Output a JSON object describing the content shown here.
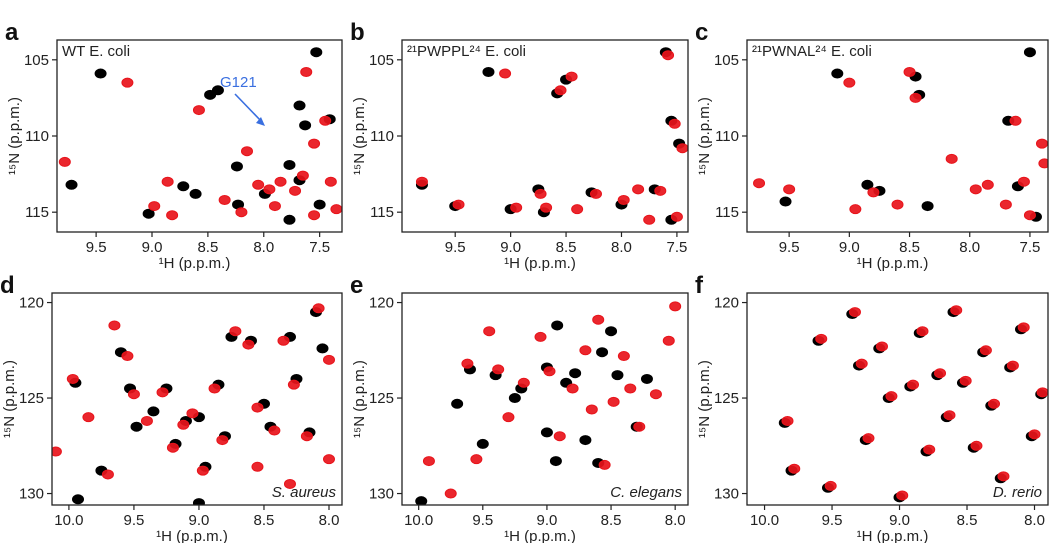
{
  "chart_data": [
    {
      "type": "scatter",
      "panel_label": "a",
      "title": "WT E. coli",
      "title_corner": "top-left",
      "xlabel": "¹H (p.p.m.)",
      "ylabel": "¹⁵N (p.p.m.)",
      "x_inverted": true,
      "y_inverted": true,
      "xlim": [
        9.85,
        7.3
      ],
      "ylim": [
        103.7,
        116.3
      ],
      "xticks": [
        9.5,
        {
          "value": 9,
          "label": "9.0"
        },
        8.5,
        {
          "value": 8,
          "label": "8.0"
        },
        7.5
      ],
      "yticks": [
        105,
        110,
        115
      ],
      "annotation": {
        "text": "G121",
        "color": "#3a6fe0"
      },
      "series": [
        {
          "color": "#000000",
          "x": [
            9.72,
            9.46,
            9.03,
            8.72,
            8.61,
            8.48,
            8.41,
            8.24,
            8.23,
            7.99,
            7.77,
            7.68,
            7.63,
            7.53,
            7.68,
            7.41,
            7.5,
            7.77
          ],
          "values": [
            113.2,
            105.9,
            115.1,
            113.3,
            113.8,
            107.3,
            107.0,
            112.0,
            114.5,
            113.8,
            111.9,
            112.9,
            109.3,
            104.5,
            108.0,
            108.9,
            114.5,
            115.5
          ]
        },
        {
          "color": "#e8141b",
          "x": [
            9.78,
            9.22,
            8.98,
            8.86,
            8.82,
            8.58,
            8.35,
            8.15,
            8.05,
            7.95,
            7.85,
            7.72,
            7.62,
            7.55,
            7.45,
            7.4,
            7.35,
            7.55,
            8.2,
            7.65,
            7.9
          ],
          "values": [
            111.7,
            106.5,
            114.6,
            113.0,
            115.2,
            108.3,
            114.2,
            111.0,
            113.2,
            113.5,
            113.0,
            113.6,
            105.8,
            110.5,
            109.0,
            113.0,
            114.8,
            115.2,
            115.0,
            112.6,
            114.6
          ]
        }
      ]
    },
    {
      "type": "scatter",
      "panel_label": "b",
      "title": "²¹PWPPL²⁴ E. coli",
      "title_corner": "top-left",
      "xlabel": "¹H (p.p.m.)",
      "ylabel": "¹⁵N (p.p.m.)",
      "x_inverted": true,
      "y_inverted": true,
      "xlim": [
        9.98,
        7.4
      ],
      "ylim": [
        103.7,
        116.3
      ],
      "xticks": [
        9.5,
        {
          "value": 9,
          "label": "9.0"
        },
        8.5,
        {
          "value": 8,
          "label": "8.0"
        },
        7.5
      ],
      "yticks": [
        105,
        110,
        115
      ],
      "series": [
        {
          "color": "#000000",
          "x": [
            9.8,
            9.5,
            9.2,
            9.0,
            8.75,
            8.58,
            8.5,
            8.27,
            8.0,
            7.6,
            7.55,
            7.48,
            7.7,
            7.55,
            8.7
          ],
          "values": [
            113.2,
            114.6,
            105.8,
            114.8,
            113.5,
            107.2,
            106.3,
            113.7,
            114.5,
            104.5,
            109.0,
            110.5,
            113.5,
            115.5,
            115.0
          ]
        },
        {
          "color": "#e8141b",
          "x": [
            9.8,
            9.47,
            9.05,
            8.95,
            8.73,
            8.55,
            8.45,
            8.23,
            7.98,
            7.85,
            7.58,
            7.52,
            7.45,
            7.65,
            7.5,
            8.68,
            8.4,
            7.75
          ],
          "values": [
            113.0,
            114.5,
            105.9,
            114.7,
            113.8,
            107.0,
            106.1,
            113.8,
            114.2,
            113.5,
            104.7,
            109.2,
            110.8,
            113.6,
            115.3,
            114.7,
            114.8,
            115.5
          ]
        }
      ]
    },
    {
      "type": "scatter",
      "panel_label": "c",
      "title": "²¹PWNAL²⁴ E. coli",
      "title_corner": "top-left",
      "xlabel": "¹H (p.p.m.)",
      "ylabel": "¹⁵N (p.p.m.)",
      "x_inverted": true,
      "y_inverted": true,
      "xlim": [
        9.85,
        7.35
      ],
      "ylim": [
        103.7,
        116.3
      ],
      "xticks": [
        9.5,
        {
          "value": 9,
          "label": "9.0"
        },
        8.5,
        {
          "value": 8,
          "label": "8.0"
        },
        7.5
      ],
      "yticks": [
        105,
        110,
        115
      ],
      "series": [
        {
          "color": "#000000",
          "x": [
            9.53,
            9.1,
            8.85,
            8.75,
            8.45,
            8.42,
            8.35,
            7.68,
            7.5,
            7.6,
            7.45
          ],
          "values": [
            114.3,
            105.9,
            113.2,
            113.6,
            106.1,
            107.3,
            114.6,
            109.0,
            104.5,
            113.3,
            115.3
          ]
        },
        {
          "color": "#e8141b",
          "x": [
            9.75,
            9.5,
            9.0,
            8.95,
            8.8,
            8.5,
            8.45,
            8.15,
            7.95,
            7.85,
            7.7,
            7.62,
            7.55,
            7.5,
            7.4,
            8.6,
            7.38
          ],
          "values": [
            113.1,
            113.5,
            106.5,
            114.8,
            113.7,
            105.8,
            107.5,
            111.5,
            113.5,
            113.2,
            114.5,
            109.0,
            113.0,
            115.2,
            110.5,
            114.5,
            111.8
          ]
        }
      ]
    },
    {
      "type": "scatter",
      "panel_label": "d",
      "title": "S. aureus",
      "title_corner": "bottom-right",
      "xlabel": "¹H (p.p.m.)",
      "ylabel": "¹⁵N (p.p.m.)",
      "x_inverted": true,
      "y_inverted": true,
      "xlim": [
        10.13,
        7.9
      ],
      "ylim": [
        119.5,
        130.6
      ],
      "xticks": [
        {
          "value": 10,
          "label": "10.0"
        },
        9.5,
        {
          "value": 9,
          "label": "9.0"
        },
        8.5,
        {
          "value": 8,
          "label": "8.0"
        }
      ],
      "yticks": [
        120,
        125,
        130
      ],
      "series": [
        {
          "color": "#000000",
          "x": [
            9.95,
            9.93,
            9.6,
            9.53,
            9.48,
            9.35,
            9.25,
            9.18,
            9.1,
            9.0,
            8.95,
            8.85,
            8.8,
            8.75,
            8.6,
            8.5,
            8.45,
            8.3,
            8.25,
            8.15,
            8.1,
            8.05,
            9.75,
            9.0
          ],
          "values": [
            124.2,
            130.3,
            122.6,
            124.5,
            126.5,
            125.7,
            124.5,
            127.4,
            126.2,
            126.0,
            128.6,
            124.3,
            127.0,
            121.8,
            122.0,
            125.3,
            126.5,
            121.8,
            124.0,
            126.8,
            120.5,
            122.4,
            128.8,
            130.5
          ]
        },
        {
          "color": "#e8141b",
          "x": [
            9.97,
            10.1,
            9.65,
            9.55,
            9.5,
            9.4,
            9.28,
            9.2,
            9.12,
            9.05,
            8.97,
            8.88,
            8.82,
            8.72,
            8.62,
            8.55,
            8.42,
            8.35,
            8.27,
            8.17,
            8.08,
            8.0,
            9.7,
            8.55,
            8.3,
            9.85,
            8.0
          ],
          "values": [
            124.0,
            127.8,
            121.2,
            122.8,
            124.8,
            126.2,
            124.7,
            127.6,
            126.4,
            125.8,
            128.8,
            124.5,
            127.2,
            121.5,
            122.2,
            125.5,
            126.7,
            122.0,
            124.3,
            127.0,
            120.3,
            123.0,
            129.0,
            128.6,
            129.5,
            126.0,
            128.2
          ]
        }
      ]
    },
    {
      "type": "scatter",
      "panel_label": "e",
      "title": "C. elegans",
      "title_corner": "bottom-right",
      "xlabel": "¹H (p.p.m.)",
      "ylabel": "¹⁵N (p.p.m.)",
      "x_inverted": true,
      "y_inverted": true,
      "xlim": [
        10.13,
        7.9
      ],
      "ylim": [
        119.5,
        130.6
      ],
      "xticks": [
        {
          "value": 10,
          "label": "10.0"
        },
        9.5,
        {
          "value": 9,
          "label": "9.0"
        },
        8.5,
        {
          "value": 8,
          "label": "8.0"
        }
      ],
      "yticks": [
        120,
        125,
        130
      ],
      "series": [
        {
          "color": "#000000",
          "x": [
            9.98,
            9.6,
            9.4,
            9.25,
            9.2,
            9.0,
            9.0,
            8.93,
            8.85,
            8.78,
            8.7,
            8.6,
            8.57,
            8.5,
            8.45,
            8.3,
            8.22,
            9.7,
            9.5,
            8.92
          ],
          "values": [
            130.4,
            123.5,
            123.8,
            125.0,
            124.5,
            123.4,
            126.8,
            128.3,
            124.2,
            123.7,
            127.2,
            128.4,
            122.6,
            121.5,
            123.8,
            126.5,
            124.0,
            125.3,
            127.4,
            121.2
          ]
        },
        {
          "color": "#e8141b",
          "x": [
            9.92,
            9.62,
            9.45,
            9.38,
            9.3,
            9.18,
            9.05,
            8.98,
            8.9,
            8.8,
            8.7,
            8.65,
            8.55,
            8.48,
            8.4,
            8.35,
            8.28,
            8.15,
            8.05,
            8.0,
            9.75,
            9.55,
            8.6
          ],
          "values": [
            128.3,
            123.2,
            121.5,
            123.5,
            126.0,
            124.2,
            121.8,
            123.6,
            127.0,
            124.5,
            122.5,
            125.6,
            128.5,
            125.2,
            122.8,
            124.5,
            126.5,
            124.8,
            122.0,
            120.2,
            130.0,
            128.2,
            120.9
          ]
        }
      ]
    },
    {
      "type": "scatter",
      "panel_label": "f",
      "title": "D. rerio",
      "title_corner": "bottom-right",
      "xlabel": "¹H (p.p.m.)",
      "ylabel": "¹⁵N (p.p.m.)",
      "x_inverted": true,
      "y_inverted": true,
      "xlim": [
        10.13,
        7.9
      ],
      "ylim": [
        119.5,
        130.6
      ],
      "xticks": [
        {
          "value": 10,
          "label": "10.0"
        },
        9.5,
        {
          "value": 9,
          "label": "9.0"
        },
        8.5,
        {
          "value": 8,
          "label": "8.0"
        }
      ],
      "yticks": [
        120,
        125,
        130
      ],
      "series": [
        {
          "color": "#000000",
          "x": [
            9.85,
            9.8,
            9.6,
            9.53,
            9.35,
            9.3,
            9.25,
            9.15,
            9.08,
            9.0,
            8.92,
            8.85,
            8.8,
            8.72,
            8.65,
            8.6,
            8.53,
            8.45,
            8.38,
            8.32,
            8.25,
            8.18,
            8.1,
            8.02,
            7.95
          ],
          "values": [
            126.3,
            128.8,
            122.0,
            129.7,
            120.6,
            123.3,
            127.2,
            122.4,
            125.0,
            130.2,
            124.4,
            121.6,
            127.8,
            123.8,
            126.0,
            120.5,
            124.2,
            127.6,
            122.6,
            125.4,
            129.2,
            123.4,
            121.4,
            127.0,
            124.8
          ]
        },
        {
          "color": "#e8141b",
          "x": [
            9.83,
            9.78,
            9.58,
            9.51,
            9.33,
            9.28,
            9.23,
            9.13,
            9.06,
            8.98,
            8.9,
            8.83,
            8.78,
            8.7,
            8.63,
            8.58,
            8.51,
            8.43,
            8.36,
            8.3,
            8.23,
            8.16,
            8.08,
            8.0,
            7.94
          ],
          "values": [
            126.2,
            128.7,
            121.9,
            129.6,
            120.5,
            123.2,
            127.1,
            122.3,
            124.9,
            130.1,
            124.3,
            121.5,
            127.7,
            123.7,
            125.9,
            120.4,
            124.1,
            127.5,
            122.5,
            125.3,
            129.1,
            123.3,
            121.3,
            126.9,
            124.7
          ]
        }
      ]
    }
  ]
}
